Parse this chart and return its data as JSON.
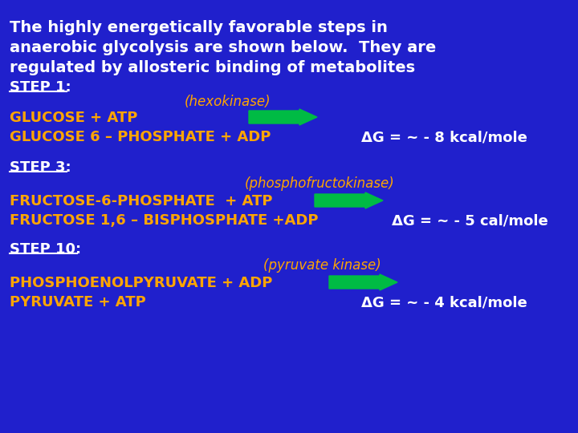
{
  "bg_color": "#2020CC",
  "white": "#FFFFFF",
  "orange": "#FFA500",
  "green_arrow": "#00BB44",
  "title_lines": [
    "The highly energetically favorable steps in",
    "anaerobic glycolysis are shown below.  They are",
    "regulated by allosteric binding of metabolites"
  ],
  "step1_label": "STEP 1:",
  "step1_enzyme": "(hexokinase)",
  "step1_line1": "GLUCOSE + ATP",
  "step1_line2": "GLUCOSE 6 – PHOSPHATE + ADP",
  "step1_dg": "ΔG = ~ - 8 kcal/mole",
  "step3_label": "STEP 3:",
  "step3_enzyme": "(phosphofructokinase)",
  "step3_line1": "FRUCTOSE-6-PHOSPHATE  + ATP",
  "step3_line2": "FRUCTOSE 1,6 – BISPHOSPHATE +ADP",
  "step3_dg": "ΔG = ~ - 5 cal/mole",
  "step10_label": "STEP 10:",
  "step10_enzyme": "(pyruvate kinase)",
  "step10_line1": "PHOSPHOENOLPYRUVATE + ADP",
  "step10_line2": "PYRUVATE + ATP",
  "step10_dg": "ΔG = ~ - 4 kcal/mole"
}
